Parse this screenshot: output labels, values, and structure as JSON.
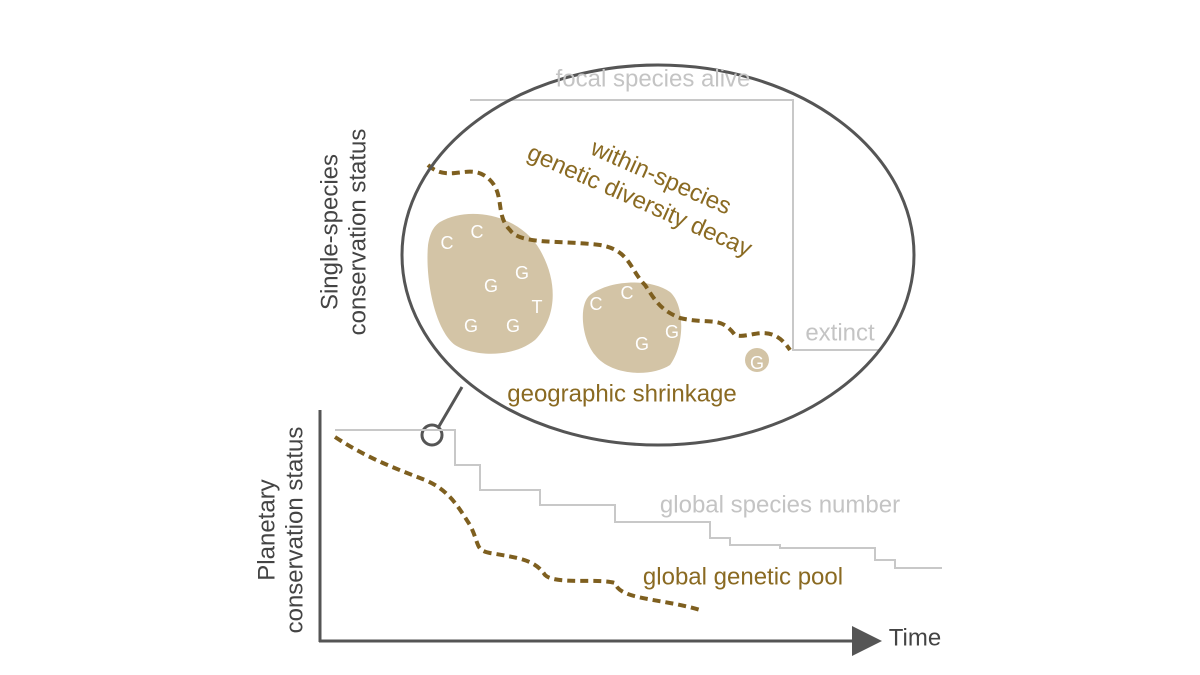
{
  "top_panel": {
    "axis_label": [
      "Single-species",
      "conservation status"
    ],
    "focal_line": "focal species alive",
    "extinct_label": "extinct",
    "genetic_label": [
      "within-species",
      "genetic diversity decay"
    ],
    "range_label": "geographic shrinkage",
    "blob_letters": [
      "C",
      "C",
      "G",
      "G",
      "T",
      "G",
      "G",
      "C",
      "C",
      "G",
      "G",
      "G"
    ]
  },
  "bottom_panel": {
    "axis_label": [
      "Planetary",
      "conservation status"
    ],
    "x_axis_label": "Time",
    "species_line": "global species number",
    "genetic_line": "global genetic pool"
  }
}
